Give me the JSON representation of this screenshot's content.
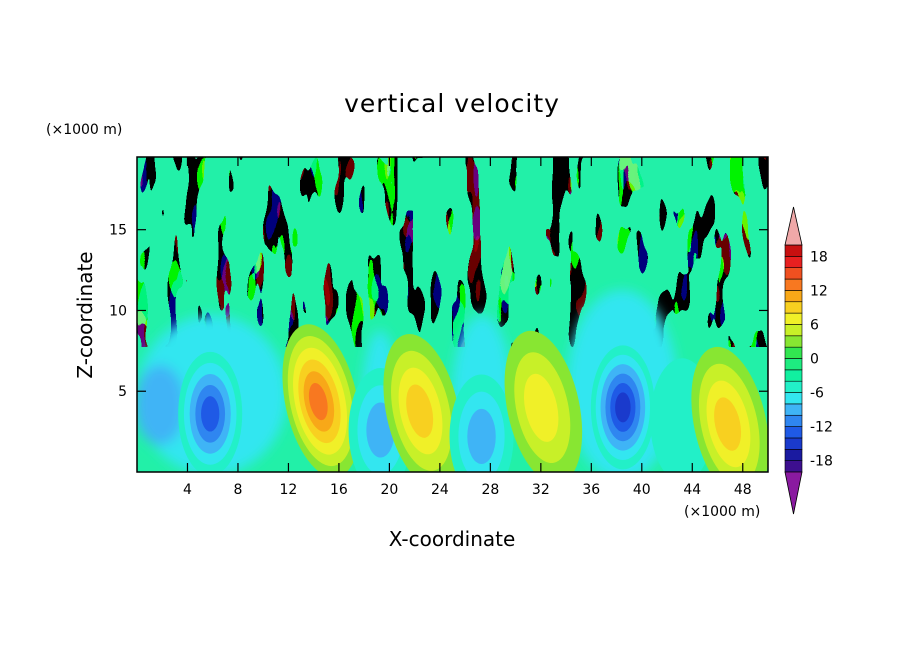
{
  "chart_data": {
    "type": "heatmap",
    "title": "vertical velocity",
    "xlabel": "X-coordinate",
    "ylabel": "Z-coordinate",
    "x_unit": "(×1000 m)",
    "y_unit": "(×1000 m)",
    "xlim": [
      0,
      50
    ],
    "ylim": [
      0,
      19.5
    ],
    "x_ticks": [
      4,
      8,
      12,
      16,
      20,
      24,
      28,
      32,
      36,
      40,
      44,
      48
    ],
    "y_ticks": [
      5,
      10,
      15
    ],
    "colorbar": {
      "levels": [
        -20,
        -18,
        -16,
        -14,
        -12,
        -10,
        -8,
        -6,
        -4,
        -2,
        0,
        2,
        4,
        6,
        8,
        10,
        12,
        14,
        16,
        18,
        20
      ],
      "labels": [
        18,
        12,
        6,
        0,
        -6,
        -12,
        -18
      ],
      "colors": [
        "#3d0f8f",
        "#1a1aa0",
        "#1a3acc",
        "#1f5ae6",
        "#2f86f0",
        "#3fb4f6",
        "#33e6f0",
        "#22f0c8",
        "#11f0a0",
        "#1eec80",
        "#32e650",
        "#88e632",
        "#c8f028",
        "#f0f028",
        "#f8d020",
        "#f8a818",
        "#f87820",
        "#f05020",
        "#e82020",
        "#c81010"
      ],
      "under_color": "#8a1aa0",
      "over_color": "#f0a8a8"
    },
    "cells": [
      {
        "x": 5.8,
        "z": 3.6,
        "value": -13
      },
      {
        "x": 14.6,
        "z": 4.4,
        "value": 13
      },
      {
        "x": 19.3,
        "z": 2.6,
        "value": -8
      },
      {
        "x": 22.6,
        "z": 3.8,
        "value": 9
      },
      {
        "x": 27.3,
        "z": 2.2,
        "value": -9
      },
      {
        "x": 32.2,
        "z": 4.0,
        "value": 7
      },
      {
        "x": 38.5,
        "z": 4.0,
        "value": -14
      },
      {
        "x": 43.2,
        "z": 3.2,
        "value": -5
      },
      {
        "x": 47.0,
        "z": 3.0,
        "value": 8
      }
    ]
  }
}
